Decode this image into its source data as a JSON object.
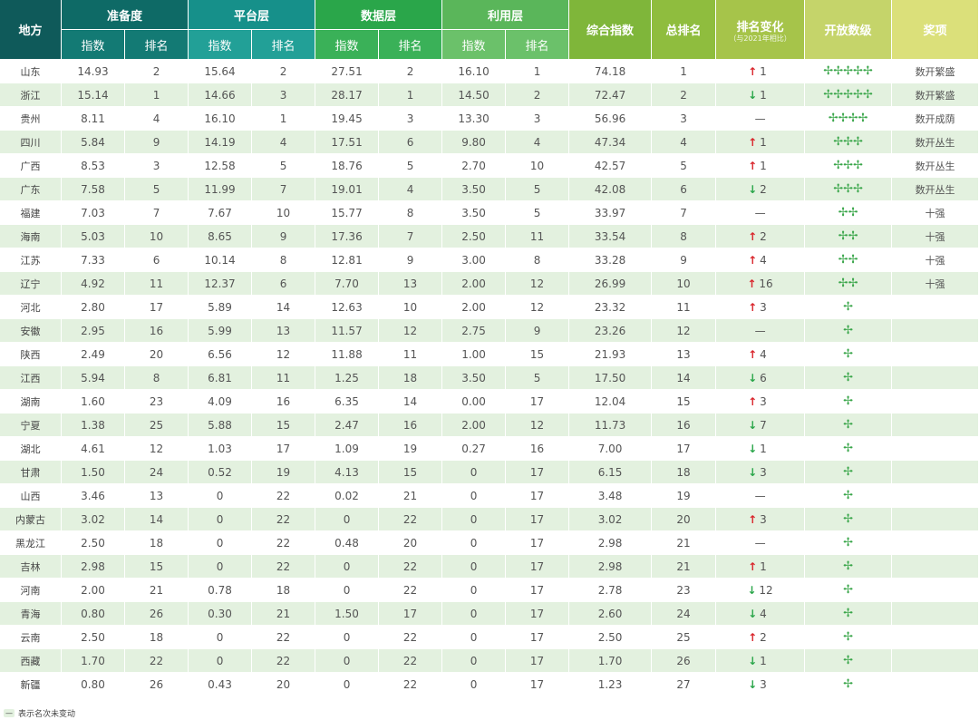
{
  "header": {
    "region": "地方",
    "groups": [
      "准备度",
      "平台层",
      "数据层",
      "利用层"
    ],
    "sub_index": "指数",
    "sub_rank": "排名",
    "composite": "综合指数",
    "total_rank": "总排名",
    "rank_change": "排名变化",
    "rank_change_note": "（与2021年相比）",
    "open_level": "开放数级",
    "award": "奖项"
  },
  "colors": {
    "region": "#0f5a5a",
    "g1_top": "#0e6a66",
    "g1_sub": "#137a74",
    "g2_top": "#16908a",
    "g2_sub": "#22a097",
    "g3_top": "#2aa64a",
    "g3_sub": "#3ab158",
    "g4_top": "#5ab65a",
    "g4_sub": "#6bc16a",
    "composite": "#7fb63a",
    "total_rank": "#8fbd3e",
    "rank_change": "#a6c44a",
    "open_level": "#c5d46a",
    "award": "#dbe07a",
    "row_alt": "#e3f1df",
    "up": "#d9262c",
    "down": "#2aa64a"
  },
  "leaf_symbol": "✢",
  "rows": [
    {
      "name": "山东",
      "r_i": "14.93",
      "r_r": "2",
      "p_i": "15.64",
      "p_r": "2",
      "d_i": "27.51",
      "d_r": "2",
      "u_i": "16.10",
      "u_r": "1",
      "comp": "74.18",
      "rank": "1",
      "dir": "up",
      "chg": "1",
      "level": 5,
      "award": "数开繁盛"
    },
    {
      "name": "浙江",
      "r_i": "15.14",
      "r_r": "1",
      "p_i": "14.66",
      "p_r": "3",
      "d_i": "28.17",
      "d_r": "1",
      "u_i": "14.50",
      "u_r": "2",
      "comp": "72.47",
      "rank": "2",
      "dir": "down",
      "chg": "1",
      "level": 5,
      "award": "数开繁盛"
    },
    {
      "name": "贵州",
      "r_i": "8.11",
      "r_r": "4",
      "p_i": "16.10",
      "p_r": "1",
      "d_i": "19.45",
      "d_r": "3",
      "u_i": "13.30",
      "u_r": "3",
      "comp": "56.96",
      "rank": "3",
      "dir": "none",
      "chg": "—",
      "level": 4,
      "award": "数开成荫"
    },
    {
      "name": "四川",
      "r_i": "5.84",
      "r_r": "9",
      "p_i": "14.19",
      "p_r": "4",
      "d_i": "17.51",
      "d_r": "6",
      "u_i": "9.80",
      "u_r": "4",
      "comp": "47.34",
      "rank": "4",
      "dir": "up",
      "chg": "1",
      "level": 3,
      "award": "数开丛生"
    },
    {
      "name": "广西",
      "r_i": "8.53",
      "r_r": "3",
      "p_i": "12.58",
      "p_r": "5",
      "d_i": "18.76",
      "d_r": "5",
      "u_i": "2.70",
      "u_r": "10",
      "comp": "42.57",
      "rank": "5",
      "dir": "up",
      "chg": "1",
      "level": 3,
      "award": "数开丛生"
    },
    {
      "name": "广东",
      "r_i": "7.58",
      "r_r": "5",
      "p_i": "11.99",
      "p_r": "7",
      "d_i": "19.01",
      "d_r": "4",
      "u_i": "3.50",
      "u_r": "5",
      "comp": "42.08",
      "rank": "6",
      "dir": "down",
      "chg": "2",
      "level": 3,
      "award": "数开丛生"
    },
    {
      "name": "福建",
      "r_i": "7.03",
      "r_r": "7",
      "p_i": "7.67",
      "p_r": "10",
      "d_i": "15.77",
      "d_r": "8",
      "u_i": "3.50",
      "u_r": "5",
      "comp": "33.97",
      "rank": "7",
      "dir": "none",
      "chg": "—",
      "level": 2,
      "award": "十强"
    },
    {
      "name": "海南",
      "r_i": "5.03",
      "r_r": "10",
      "p_i": "8.65",
      "p_r": "9",
      "d_i": "17.36",
      "d_r": "7",
      "u_i": "2.50",
      "u_r": "11",
      "comp": "33.54",
      "rank": "8",
      "dir": "up",
      "chg": "2",
      "level": 2,
      "award": "十强"
    },
    {
      "name": "江苏",
      "r_i": "7.33",
      "r_r": "6",
      "p_i": "10.14",
      "p_r": "8",
      "d_i": "12.81",
      "d_r": "9",
      "u_i": "3.00",
      "u_r": "8",
      "comp": "33.28",
      "rank": "9",
      "dir": "up",
      "chg": "4",
      "level": 2,
      "award": "十强"
    },
    {
      "name": "辽宁",
      "r_i": "4.92",
      "r_r": "11",
      "p_i": "12.37",
      "p_r": "6",
      "d_i": "7.70",
      "d_r": "13",
      "u_i": "2.00",
      "u_r": "12",
      "comp": "26.99",
      "rank": "10",
      "dir": "up",
      "chg": "16",
      "level": 2,
      "award": "十强"
    },
    {
      "name": "河北",
      "r_i": "2.80",
      "r_r": "17",
      "p_i": "5.89",
      "p_r": "14",
      "d_i": "12.63",
      "d_r": "10",
      "u_i": "2.00",
      "u_r": "12",
      "comp": "23.32",
      "rank": "11",
      "dir": "up",
      "chg": "3",
      "level": 1,
      "award": ""
    },
    {
      "name": "安徽",
      "r_i": "2.95",
      "r_r": "16",
      "p_i": "5.99",
      "p_r": "13",
      "d_i": "11.57",
      "d_r": "12",
      "u_i": "2.75",
      "u_r": "9",
      "comp": "23.26",
      "rank": "12",
      "dir": "none",
      "chg": "—",
      "level": 1,
      "award": ""
    },
    {
      "name": "陕西",
      "r_i": "2.49",
      "r_r": "20",
      "p_i": "6.56",
      "p_r": "12",
      "d_i": "11.88",
      "d_r": "11",
      "u_i": "1.00",
      "u_r": "15",
      "comp": "21.93",
      "rank": "13",
      "dir": "up",
      "chg": "4",
      "level": 1,
      "award": ""
    },
    {
      "name": "江西",
      "r_i": "5.94",
      "r_r": "8",
      "p_i": "6.81",
      "p_r": "11",
      "d_i": "1.25",
      "d_r": "18",
      "u_i": "3.50",
      "u_r": "5",
      "comp": "17.50",
      "rank": "14",
      "dir": "down",
      "chg": "6",
      "level": 1,
      "award": ""
    },
    {
      "name": "湖南",
      "r_i": "1.60",
      "r_r": "23",
      "p_i": "4.09",
      "p_r": "16",
      "d_i": "6.35",
      "d_r": "14",
      "u_i": "0.00",
      "u_r": "17",
      "comp": "12.04",
      "rank": "15",
      "dir": "up",
      "chg": "3",
      "level": 1,
      "award": ""
    },
    {
      "name": "宁夏",
      "r_i": "1.38",
      "r_r": "25",
      "p_i": "5.88",
      "p_r": "15",
      "d_i": "2.47",
      "d_r": "16",
      "u_i": "2.00",
      "u_r": "12",
      "comp": "11.73",
      "rank": "16",
      "dir": "down",
      "chg": "7",
      "level": 1,
      "award": ""
    },
    {
      "name": "湖北",
      "r_i": "4.61",
      "r_r": "12",
      "p_i": "1.03",
      "p_r": "17",
      "d_i": "1.09",
      "d_r": "19",
      "u_i": "0.27",
      "u_r": "16",
      "comp": "7.00",
      "rank": "17",
      "dir": "down",
      "chg": "1",
      "level": 1,
      "award": ""
    },
    {
      "name": "甘肃",
      "r_i": "1.50",
      "r_r": "24",
      "p_i": "0.52",
      "p_r": "19",
      "d_i": "4.13",
      "d_r": "15",
      "u_i": "0",
      "u_r": "17",
      "comp": "6.15",
      "rank": "18",
      "dir": "down",
      "chg": "3",
      "level": 1,
      "award": ""
    },
    {
      "name": "山西",
      "r_i": "3.46",
      "r_r": "13",
      "p_i": "0",
      "p_r": "22",
      "d_i": "0.02",
      "d_r": "21",
      "u_i": "0",
      "u_r": "17",
      "comp": "3.48",
      "rank": "19",
      "dir": "none",
      "chg": "—",
      "level": 1,
      "award": ""
    },
    {
      "name": "内蒙古",
      "r_i": "3.02",
      "r_r": "14",
      "p_i": "0",
      "p_r": "22",
      "d_i": "0",
      "d_r": "22",
      "u_i": "0",
      "u_r": "17",
      "comp": "3.02",
      "rank": "20",
      "dir": "up",
      "chg": "3",
      "level": 1,
      "award": ""
    },
    {
      "name": "黑龙江",
      "r_i": "2.50",
      "r_r": "18",
      "p_i": "0",
      "p_r": "22",
      "d_i": "0.48",
      "d_r": "20",
      "u_i": "0",
      "u_r": "17",
      "comp": "2.98",
      "rank": "21",
      "dir": "none",
      "chg": "—",
      "level": 1,
      "award": ""
    },
    {
      "name": "吉林",
      "r_i": "2.98",
      "r_r": "15",
      "p_i": "0",
      "p_r": "22",
      "d_i": "0",
      "d_r": "22",
      "u_i": "0",
      "u_r": "17",
      "comp": "2.98",
      "rank": "21",
      "dir": "up",
      "chg": "1",
      "level": 1,
      "award": ""
    },
    {
      "name": "河南",
      "r_i": "2.00",
      "r_r": "21",
      "p_i": "0.78",
      "p_r": "18",
      "d_i": "0",
      "d_r": "22",
      "u_i": "0",
      "u_r": "17",
      "comp": "2.78",
      "rank": "23",
      "dir": "down",
      "chg": "12",
      "level": 1,
      "award": ""
    },
    {
      "name": "青海",
      "r_i": "0.80",
      "r_r": "26",
      "p_i": "0.30",
      "p_r": "21",
      "d_i": "1.50",
      "d_r": "17",
      "u_i": "0",
      "u_r": "17",
      "comp": "2.60",
      "rank": "24",
      "dir": "down",
      "chg": "4",
      "level": 1,
      "award": ""
    },
    {
      "name": "云南",
      "r_i": "2.50",
      "r_r": "18",
      "p_i": "0",
      "p_r": "22",
      "d_i": "0",
      "d_r": "22",
      "u_i": "0",
      "u_r": "17",
      "comp": "2.50",
      "rank": "25",
      "dir": "up",
      "chg": "2",
      "level": 1,
      "award": ""
    },
    {
      "name": "西藏",
      "r_i": "1.70",
      "r_r": "22",
      "p_i": "0",
      "p_r": "22",
      "d_i": "0",
      "d_r": "22",
      "u_i": "0",
      "u_r": "17",
      "comp": "1.70",
      "rank": "26",
      "dir": "down",
      "chg": "1",
      "level": 1,
      "award": ""
    },
    {
      "name": "新疆",
      "r_i": "0.80",
      "r_r": "26",
      "p_i": "0.43",
      "p_r": "20",
      "d_i": "0",
      "d_r": "22",
      "u_i": "0",
      "u_r": "17",
      "comp": "1.23",
      "rank": "27",
      "dir": "down",
      "chg": "3",
      "level": 1,
      "award": ""
    }
  ],
  "legend": {
    "symbol": "—",
    "text": "表示名次未变动"
  }
}
